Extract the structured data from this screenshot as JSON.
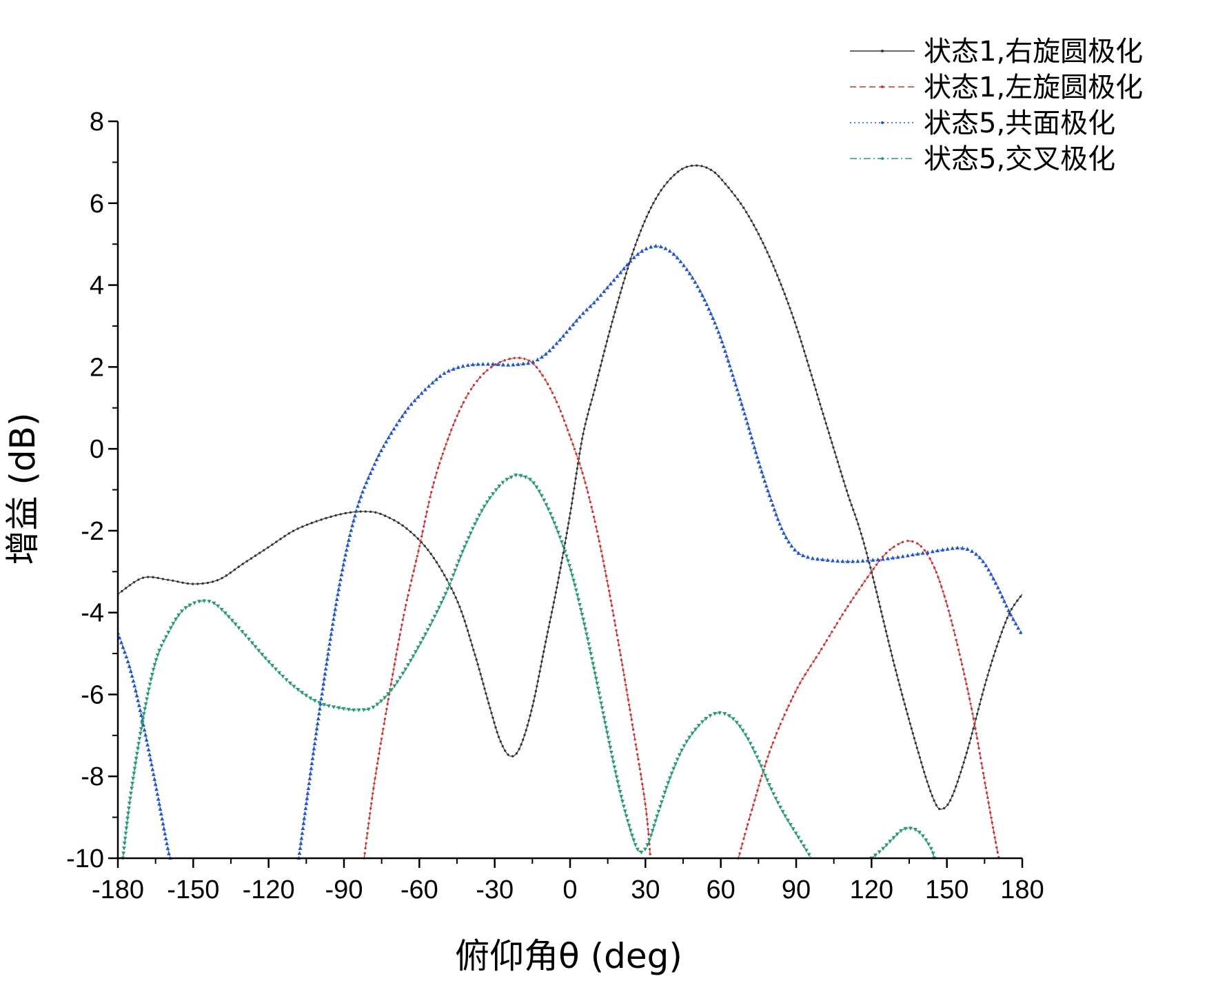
{
  "chart_data": {
    "type": "line",
    "xlabel": "俯仰角θ (deg)",
    "ylabel": "增益 (dB)",
    "xlim": [
      -180,
      180
    ],
    "ylim": [
      -10,
      8
    ],
    "x_ticks": [
      -180,
      -150,
      -120,
      -90,
      -60,
      -30,
      0,
      30,
      60,
      90,
      120,
      150,
      180
    ],
    "y_ticks": [
      -10,
      -8,
      -6,
      -4,
      -2,
      0,
      2,
      4,
      6,
      8
    ],
    "x_tick_labels": [
      "-180",
      "-150",
      "-120",
      "-90",
      "-60",
      "-30",
      "0",
      "30",
      "60",
      "90",
      "120",
      "150",
      "180"
    ],
    "y_tick_labels": [
      "-10",
      "-8",
      "-6",
      "-4",
      "-2",
      "0",
      "2",
      "4",
      "6",
      "8"
    ],
    "grid": false,
    "legend_position": "top-right",
    "series": [
      {
        "name": "状态1,右旋圆极化",
        "color": "#333333",
        "dash": "solid",
        "marker": "dot",
        "points": [
          [
            -180,
            -3.55
          ],
          [
            -170,
            -3.15
          ],
          [
            -160,
            -3.2
          ],
          [
            -150,
            -3.3
          ],
          [
            -140,
            -3.2
          ],
          [
            -130,
            -2.8
          ],
          [
            -120,
            -2.4
          ],
          [
            -110,
            -2.0
          ],
          [
            -100,
            -1.75
          ],
          [
            -90,
            -1.58
          ],
          [
            -82,
            -1.53
          ],
          [
            -75,
            -1.6
          ],
          [
            -65,
            -1.95
          ],
          [
            -55,
            -2.6
          ],
          [
            -45,
            -3.7
          ],
          [
            -38,
            -5.0
          ],
          [
            -32,
            -6.3
          ],
          [
            -28,
            -7.1
          ],
          [
            -24,
            -7.5
          ],
          [
            -20,
            -7.3
          ],
          [
            -15,
            -6.3
          ],
          [
            -10,
            -4.8
          ],
          [
            -5,
            -3.3
          ],
          [
            0,
            -1.6
          ],
          [
            5,
            0.3
          ],
          [
            10,
            1.5
          ],
          [
            15,
            2.7
          ],
          [
            20,
            3.8
          ],
          [
            25,
            4.8
          ],
          [
            30,
            5.6
          ],
          [
            35,
            6.2
          ],
          [
            40,
            6.6
          ],
          [
            45,
            6.85
          ],
          [
            50,
            6.92
          ],
          [
            55,
            6.85
          ],
          [
            60,
            6.6
          ],
          [
            70,
            5.8
          ],
          [
            80,
            4.6
          ],
          [
            90,
            3.0
          ],
          [
            100,
            1.0
          ],
          [
            110,
            -1.0
          ],
          [
            115,
            -1.9
          ],
          [
            120,
            -3.0
          ],
          [
            130,
            -5.5
          ],
          [
            140,
            -7.7
          ],
          [
            145,
            -8.6
          ],
          [
            148,
            -8.8
          ],
          [
            152,
            -8.5
          ],
          [
            158,
            -7.4
          ],
          [
            165,
            -5.8
          ],
          [
            170,
            -4.8
          ],
          [
            175,
            -4.0
          ],
          [
            180,
            -3.55
          ]
        ]
      },
      {
        "name": "状态1,左旋圆极化",
        "color": "#cc3333",
        "dash": "dashed",
        "marker": "dot",
        "points": [
          [
            -82,
            -10
          ],
          [
            -78,
            -8.2
          ],
          [
            -72,
            -6.0
          ],
          [
            -66,
            -4.0
          ],
          [
            -60,
            -2.4
          ],
          [
            -55,
            -1.0
          ],
          [
            -50,
            0.0
          ],
          [
            -45,
            0.8
          ],
          [
            -40,
            1.4
          ],
          [
            -35,
            1.8
          ],
          [
            -30,
            2.05
          ],
          [
            -25,
            2.18
          ],
          [
            -20,
            2.22
          ],
          [
            -15,
            2.1
          ],
          [
            -10,
            1.7
          ],
          [
            -5,
            1.1
          ],
          [
            0,
            0.3
          ],
          [
            5,
            -0.6
          ],
          [
            10,
            -1.8
          ],
          [
            15,
            -3.3
          ],
          [
            20,
            -5.0
          ],
          [
            25,
            -6.8
          ],
          [
            30,
            -8.7
          ],
          [
            32,
            -10
          ]
        ]
      },
      {
        "name": "状态1,左旋圆极化",
        "color": "#cc3333",
        "dash": "dashed",
        "marker": "dot",
        "points": [
          [
            67,
            -10
          ],
          [
            72,
            -8.9
          ],
          [
            80,
            -7.3
          ],
          [
            90,
            -5.9
          ],
          [
            100,
            -4.9
          ],
          [
            110,
            -3.9
          ],
          [
            120,
            -3.0
          ],
          [
            125,
            -2.6
          ],
          [
            130,
            -2.35
          ],
          [
            135,
            -2.25
          ],
          [
            140,
            -2.4
          ],
          [
            145,
            -2.9
          ],
          [
            150,
            -3.8
          ],
          [
            155,
            -5.0
          ],
          [
            160,
            -6.4
          ],
          [
            165,
            -8.1
          ],
          [
            170,
            -9.8
          ],
          [
            171,
            -10
          ]
        ]
      },
      {
        "name": "状态5,共面极化",
        "color": "#2255cc",
        "dash": "dotted",
        "marker": "triangle",
        "points": [
          [
            -180,
            -4.5
          ],
          [
            -175,
            -5.4
          ],
          [
            -170,
            -6.7
          ],
          [
            -165,
            -8.2
          ],
          [
            -160,
            -9.8
          ],
          [
            -159,
            -10
          ]
        ]
      },
      {
        "name": "状态5,共面极化",
        "color": "#2255cc",
        "dash": "dotted",
        "marker": "triangle",
        "points": [
          [
            -108,
            -10
          ],
          [
            -100,
            -6.5
          ],
          [
            -92,
            -3.4
          ],
          [
            -85,
            -1.5
          ],
          [
            -78,
            -0.4
          ],
          [
            -72,
            0.3
          ],
          [
            -65,
            0.95
          ],
          [
            -60,
            1.3
          ],
          [
            -55,
            1.6
          ],
          [
            -50,
            1.85
          ],
          [
            -45,
            1.98
          ],
          [
            -40,
            2.05
          ],
          [
            -35,
            2.07
          ],
          [
            -30,
            2.07
          ],
          [
            -25,
            2.05
          ],
          [
            -20,
            2.07
          ],
          [
            -15,
            2.12
          ],
          [
            -10,
            2.3
          ],
          [
            -5,
            2.6
          ],
          [
            0,
            2.95
          ],
          [
            5,
            3.3
          ],
          [
            10,
            3.6
          ],
          [
            15,
            3.95
          ],
          [
            20,
            4.3
          ],
          [
            25,
            4.65
          ],
          [
            30,
            4.88
          ],
          [
            35,
            4.95
          ],
          [
            40,
            4.82
          ],
          [
            45,
            4.5
          ],
          [
            50,
            4.05
          ],
          [
            55,
            3.45
          ],
          [
            60,
            2.7
          ],
          [
            65,
            1.75
          ],
          [
            70,
            0.75
          ],
          [
            75,
            -0.3
          ],
          [
            80,
            -1.25
          ],
          [
            85,
            -2.05
          ],
          [
            90,
            -2.5
          ],
          [
            95,
            -2.65
          ],
          [
            100,
            -2.7
          ],
          [
            110,
            -2.75
          ],
          [
            120,
            -2.72
          ],
          [
            130,
            -2.65
          ],
          [
            140,
            -2.55
          ],
          [
            150,
            -2.45
          ],
          [
            155,
            -2.42
          ],
          [
            160,
            -2.5
          ],
          [
            165,
            -2.8
          ],
          [
            170,
            -3.35
          ],
          [
            175,
            -4.0
          ],
          [
            180,
            -4.55
          ]
        ]
      },
      {
        "name": "状态5,交叉极化",
        "color": "#2a9a6e",
        "dash": "dashdot",
        "marker": "triangle-down",
        "points": [
          [
            -178,
            -10
          ],
          [
            -175,
            -8.5
          ],
          [
            -170,
            -6.6
          ],
          [
            -165,
            -5.2
          ],
          [
            -160,
            -4.5
          ],
          [
            -155,
            -4.0
          ],
          [
            -150,
            -3.78
          ],
          [
            -145,
            -3.72
          ],
          [
            -140,
            -3.85
          ],
          [
            -130,
            -4.5
          ],
          [
            -120,
            -5.2
          ],
          [
            -110,
            -5.8
          ],
          [
            -100,
            -6.2
          ],
          [
            -90,
            -6.35
          ],
          [
            -84,
            -6.38
          ],
          [
            -78,
            -6.3
          ],
          [
            -70,
            -5.8
          ],
          [
            -60,
            -4.8
          ],
          [
            -50,
            -3.6
          ],
          [
            -42,
            -2.4
          ],
          [
            -35,
            -1.5
          ],
          [
            -28,
            -0.9
          ],
          [
            -23,
            -0.68
          ],
          [
            -20,
            -0.65
          ],
          [
            -15,
            -0.8
          ],
          [
            -10,
            -1.3
          ],
          [
            -5,
            -2.0
          ],
          [
            0,
            -2.9
          ],
          [
            5,
            -4.1
          ],
          [
            10,
            -5.5
          ],
          [
            15,
            -7.0
          ],
          [
            20,
            -8.4
          ],
          [
            25,
            -9.5
          ],
          [
            28,
            -9.85
          ],
          [
            31,
            -9.65
          ],
          [
            35,
            -8.9
          ],
          [
            40,
            -8.0
          ],
          [
            45,
            -7.3
          ],
          [
            50,
            -6.85
          ],
          [
            55,
            -6.55
          ],
          [
            60,
            -6.45
          ],
          [
            65,
            -6.6
          ],
          [
            70,
            -7.0
          ],
          [
            75,
            -7.6
          ],
          [
            80,
            -8.3
          ],
          [
            85,
            -8.9
          ],
          [
            90,
            -9.4
          ],
          [
            95,
            -9.9
          ],
          [
            96,
            -10
          ]
        ]
      },
      {
        "name": "状态5,交叉极化",
        "color": "#2a9a6e",
        "dash": "dashdot",
        "marker": "triangle-down",
        "points": [
          [
            120,
            -10
          ],
          [
            124,
            -9.8
          ],
          [
            128,
            -9.55
          ],
          [
            132,
            -9.32
          ],
          [
            135,
            -9.27
          ],
          [
            138,
            -9.32
          ],
          [
            141,
            -9.5
          ],
          [
            144,
            -9.8
          ],
          [
            145,
            -10
          ]
        ]
      }
    ],
    "legend": [
      {
        "label": "状态1,右旋圆极化",
        "color": "#333333",
        "dash": "solid"
      },
      {
        "label": "状态1,左旋圆极化",
        "color": "#cc3333",
        "dash": "dashed"
      },
      {
        "label": "状态5,共面极化",
        "color": "#2255cc",
        "dash": "dotted"
      },
      {
        "label": "状态5,交叉极化",
        "color": "#2a9a6e",
        "dash": "dashdot"
      }
    ]
  }
}
